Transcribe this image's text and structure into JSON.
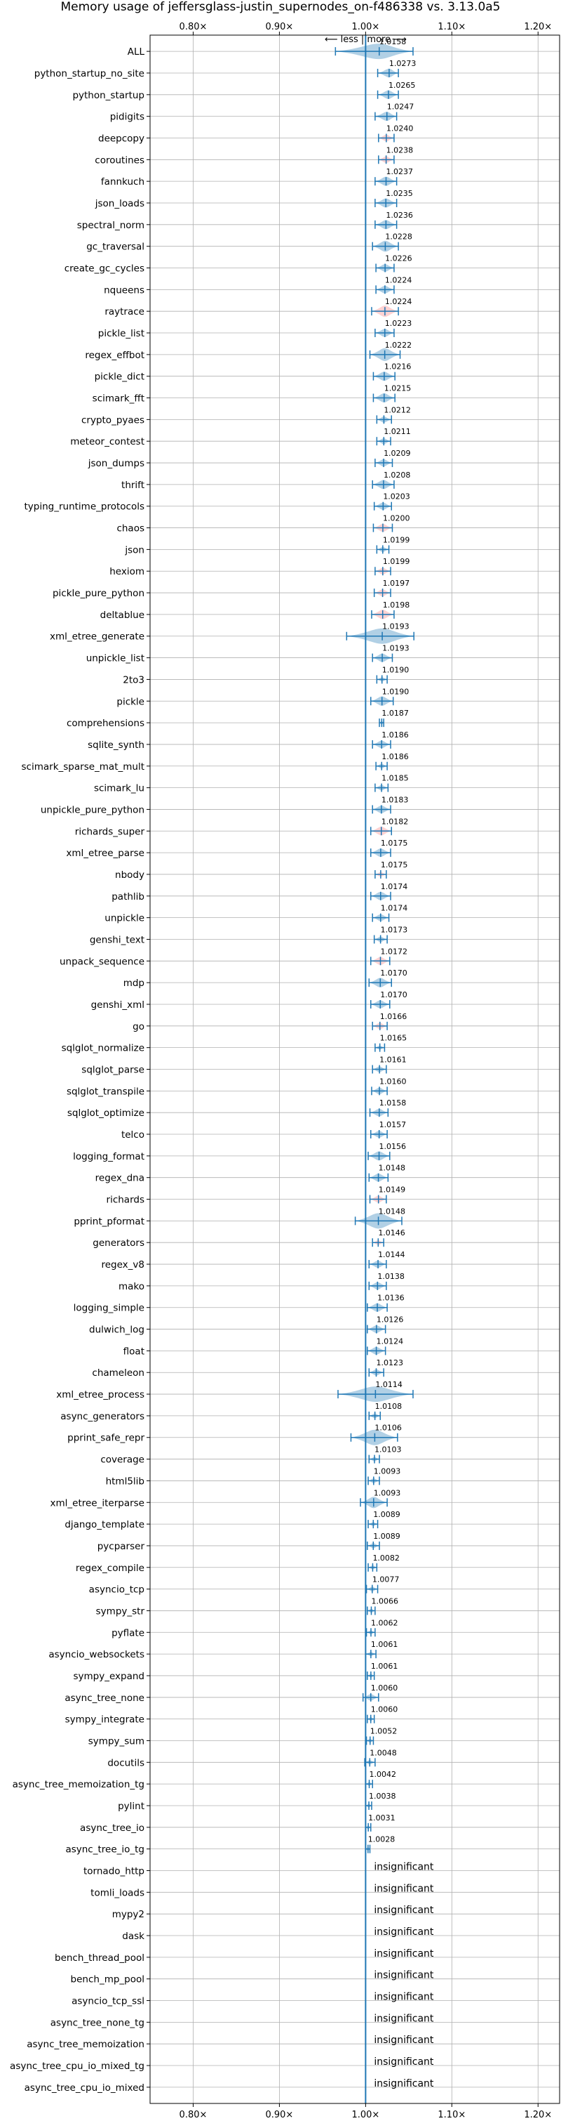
{
  "chart_data": {
    "type": "violin",
    "title": "Memory usage of jeffersglass-justin_supernodes_on-f486338 vs. 3.13.0a5",
    "direction_label": "⟵ less | more ⟶",
    "xlim": [
      0.75,
      1.225
    ],
    "x_ticks": [
      0.8,
      0.9,
      1.0,
      1.1,
      1.2
    ],
    "x_tick_labels": [
      "0.80×",
      "0.90×",
      "1.00×",
      "1.10×",
      "1.20×"
    ],
    "grid": true,
    "reference_line": 1.0,
    "insignificant_text": "insignificant",
    "colors": {
      "normal": "#1f77b4",
      "highlight": "#ff7f7f",
      "grid": "#b0b0b0"
    },
    "benchmarks": [
      {
        "name": "ALL",
        "value": 1.0158,
        "label": "1.0158",
        "lo": 0.965,
        "hi": 1.055,
        "highlight": false
      },
      {
        "name": "python_startup_no_site",
        "value": 1.0273,
        "label": "1.0273",
        "lo": 1.014,
        "hi": 1.038,
        "highlight": false
      },
      {
        "name": "python_startup",
        "value": 1.0265,
        "label": "1.0265",
        "lo": 1.014,
        "hi": 1.038,
        "highlight": false
      },
      {
        "name": "pidigits",
        "value": 1.0247,
        "label": "1.0247",
        "lo": 1.011,
        "hi": 1.036,
        "highlight": false
      },
      {
        "name": "deepcopy",
        "value": 1.024,
        "label": "1.0240",
        "lo": 1.015,
        "hi": 1.033,
        "highlight": true
      },
      {
        "name": "coroutines",
        "value": 1.0238,
        "label": "1.0238",
        "lo": 1.015,
        "hi": 1.033,
        "highlight": true
      },
      {
        "name": "fannkuch",
        "value": 1.0237,
        "label": "1.0237",
        "lo": 1.011,
        "hi": 1.036,
        "highlight": false
      },
      {
        "name": "json_loads",
        "value": 1.0235,
        "label": "1.0235",
        "lo": 1.011,
        "hi": 1.036,
        "highlight": false
      },
      {
        "name": "spectral_norm",
        "value": 1.0236,
        "label": "1.0236",
        "lo": 1.011,
        "hi": 1.036,
        "highlight": false
      },
      {
        "name": "gc_traversal",
        "value": 1.0228,
        "label": "1.0228",
        "lo": 1.008,
        "hi": 1.038,
        "highlight": false
      },
      {
        "name": "create_gc_cycles",
        "value": 1.0226,
        "label": "1.0226",
        "lo": 1.012,
        "hi": 1.033,
        "highlight": false
      },
      {
        "name": "nqueens",
        "value": 1.0224,
        "label": "1.0224",
        "lo": 1.012,
        "hi": 1.033,
        "highlight": false
      },
      {
        "name": "raytrace",
        "value": 1.0224,
        "label": "1.0224",
        "lo": 1.007,
        "hi": 1.038,
        "highlight": true
      },
      {
        "name": "pickle_list",
        "value": 1.0223,
        "label": "1.0223",
        "lo": 1.011,
        "hi": 1.033,
        "highlight": false
      },
      {
        "name": "regex_effbot",
        "value": 1.0222,
        "label": "1.0222",
        "lo": 1.005,
        "hi": 1.04,
        "highlight": false
      },
      {
        "name": "pickle_dict",
        "value": 1.0216,
        "label": "1.0216",
        "lo": 1.009,
        "hi": 1.034,
        "highlight": false
      },
      {
        "name": "scimark_fft",
        "value": 1.0215,
        "label": "1.0215",
        "lo": 1.009,
        "hi": 1.034,
        "highlight": false
      },
      {
        "name": "crypto_pyaes",
        "value": 1.0212,
        "label": "1.0212",
        "lo": 1.013,
        "hi": 1.03,
        "highlight": false
      },
      {
        "name": "meteor_contest",
        "value": 1.0211,
        "label": "1.0211",
        "lo": 1.013,
        "hi": 1.029,
        "highlight": false
      },
      {
        "name": "json_dumps",
        "value": 1.0209,
        "label": "1.0209",
        "lo": 1.011,
        "hi": 1.031,
        "highlight": false
      },
      {
        "name": "thrift",
        "value": 1.0208,
        "label": "1.0208",
        "lo": 1.008,
        "hi": 1.033,
        "highlight": false
      },
      {
        "name": "typing_runtime_protocols",
        "value": 1.0203,
        "label": "1.0203",
        "lo": 1.01,
        "hi": 1.03,
        "highlight": false
      },
      {
        "name": "chaos",
        "value": 1.02,
        "label": "1.0200",
        "lo": 1.009,
        "hi": 1.031,
        "highlight": true
      },
      {
        "name": "json",
        "value": 1.0199,
        "label": "1.0199",
        "lo": 1.013,
        "hi": 1.027,
        "highlight": false
      },
      {
        "name": "hexiom",
        "value": 1.0199,
        "label": "1.0199",
        "lo": 1.011,
        "hi": 1.029,
        "highlight": true
      },
      {
        "name": "pickle_pure_python",
        "value": 1.0197,
        "label": "1.0197",
        "lo": 1.01,
        "hi": 1.029,
        "highlight": true
      },
      {
        "name": "deltablue",
        "value": 1.0198,
        "label": "1.0198",
        "lo": 1.007,
        "hi": 1.033,
        "highlight": true
      },
      {
        "name": "xml_etree_generate",
        "value": 1.0193,
        "label": "1.0193",
        "lo": 0.978,
        "hi": 1.056,
        "highlight": false
      },
      {
        "name": "unpickle_list",
        "value": 1.0193,
        "label": "1.0193",
        "lo": 1.008,
        "hi": 1.031,
        "highlight": false
      },
      {
        "name": "2to3",
        "value": 1.019,
        "label": "1.0190",
        "lo": 1.013,
        "hi": 1.025,
        "highlight": false
      },
      {
        "name": "pickle",
        "value": 1.019,
        "label": "1.0190",
        "lo": 1.006,
        "hi": 1.032,
        "highlight": false
      },
      {
        "name": "comprehensions",
        "value": 1.0187,
        "label": "1.0187",
        "lo": 1.016,
        "hi": 1.021,
        "highlight": false
      },
      {
        "name": "sqlite_synth",
        "value": 1.0186,
        "label": "1.0186",
        "lo": 1.008,
        "hi": 1.029,
        "highlight": false
      },
      {
        "name": "scimark_sparse_mat_mult",
        "value": 1.0186,
        "label": "1.0186",
        "lo": 1.012,
        "hi": 1.025,
        "highlight": false
      },
      {
        "name": "scimark_lu",
        "value": 1.0185,
        "label": "1.0185",
        "lo": 1.011,
        "hi": 1.026,
        "highlight": false
      },
      {
        "name": "unpickle_pure_python",
        "value": 1.0183,
        "label": "1.0183",
        "lo": 1.008,
        "hi": 1.029,
        "highlight": false
      },
      {
        "name": "richards_super",
        "value": 1.0182,
        "label": "1.0182",
        "lo": 1.006,
        "hi": 1.03,
        "highlight": true
      },
      {
        "name": "xml_etree_parse",
        "value": 1.0175,
        "label": "1.0175",
        "lo": 1.006,
        "hi": 1.029,
        "highlight": false
      },
      {
        "name": "nbody",
        "value": 1.0175,
        "label": "1.0175",
        "lo": 1.011,
        "hi": 1.024,
        "highlight": true
      },
      {
        "name": "pathlib",
        "value": 1.0174,
        "label": "1.0174",
        "lo": 1.006,
        "hi": 1.029,
        "highlight": false
      },
      {
        "name": "unpickle",
        "value": 1.0174,
        "label": "1.0174",
        "lo": 1.008,
        "hi": 1.027,
        "highlight": false
      },
      {
        "name": "genshi_text",
        "value": 1.0173,
        "label": "1.0173",
        "lo": 1.01,
        "hi": 1.025,
        "highlight": false
      },
      {
        "name": "unpack_sequence",
        "value": 1.0172,
        "label": "1.0172",
        "lo": 1.006,
        "hi": 1.028,
        "highlight": true
      },
      {
        "name": "mdp",
        "value": 1.017,
        "label": "1.0170",
        "lo": 1.004,
        "hi": 1.03,
        "highlight": false
      },
      {
        "name": "genshi_xml",
        "value": 1.017,
        "label": "1.0170",
        "lo": 1.006,
        "hi": 1.028,
        "highlight": false
      },
      {
        "name": "go",
        "value": 1.0166,
        "label": "1.0166",
        "lo": 1.008,
        "hi": 1.025,
        "highlight": true
      },
      {
        "name": "sqlglot_normalize",
        "value": 1.0165,
        "label": "1.0165",
        "lo": 1.011,
        "hi": 1.022,
        "highlight": false
      },
      {
        "name": "sqlglot_parse",
        "value": 1.0161,
        "label": "1.0161",
        "lo": 1.008,
        "hi": 1.024,
        "highlight": false
      },
      {
        "name": "sqlglot_transpile",
        "value": 1.016,
        "label": "1.0160",
        "lo": 1.007,
        "hi": 1.025,
        "highlight": false
      },
      {
        "name": "sqlglot_optimize",
        "value": 1.0158,
        "label": "1.0158",
        "lo": 1.005,
        "hi": 1.026,
        "highlight": false
      },
      {
        "name": "telco",
        "value": 1.0157,
        "label": "1.0157",
        "lo": 1.006,
        "hi": 1.025,
        "highlight": false
      },
      {
        "name": "logging_format",
        "value": 1.0156,
        "label": "1.0156",
        "lo": 1.003,
        "hi": 1.028,
        "highlight": false
      },
      {
        "name": "regex_dna",
        "value": 1.0148,
        "label": "1.0148",
        "lo": 1.004,
        "hi": 1.026,
        "highlight": false
      },
      {
        "name": "richards",
        "value": 1.0149,
        "label": "1.0149",
        "lo": 1.005,
        "hi": 1.024,
        "highlight": true
      },
      {
        "name": "pprint_pformat",
        "value": 1.0148,
        "label": "1.0148",
        "lo": 0.988,
        "hi": 1.042,
        "highlight": false
      },
      {
        "name": "generators",
        "value": 1.0146,
        "label": "1.0146",
        "lo": 1.008,
        "hi": 1.021,
        "highlight": true
      },
      {
        "name": "regex_v8",
        "value": 1.0144,
        "label": "1.0144",
        "lo": 1.004,
        "hi": 1.024,
        "highlight": false
      },
      {
        "name": "mako",
        "value": 1.0138,
        "label": "1.0138",
        "lo": 1.004,
        "hi": 1.024,
        "highlight": false
      },
      {
        "name": "logging_simple",
        "value": 1.0136,
        "label": "1.0136",
        "lo": 1.002,
        "hi": 1.025,
        "highlight": false
      },
      {
        "name": "dulwich_log",
        "value": 1.0126,
        "label": "1.0126",
        "lo": 1.002,
        "hi": 1.023,
        "highlight": false
      },
      {
        "name": "float",
        "value": 1.0124,
        "label": "1.0124",
        "lo": 1.002,
        "hi": 1.023,
        "highlight": false
      },
      {
        "name": "chameleon",
        "value": 1.0123,
        "label": "1.0123",
        "lo": 1.004,
        "hi": 1.021,
        "highlight": false
      },
      {
        "name": "xml_etree_process",
        "value": 1.0114,
        "label": "1.0114",
        "lo": 0.968,
        "hi": 1.055,
        "highlight": false
      },
      {
        "name": "async_generators",
        "value": 1.0108,
        "label": "1.0108",
        "lo": 1.004,
        "hi": 1.017,
        "highlight": false
      },
      {
        "name": "pprint_safe_repr",
        "value": 1.0106,
        "label": "1.0106",
        "lo": 0.983,
        "hi": 1.037,
        "highlight": false
      },
      {
        "name": "coverage",
        "value": 1.0103,
        "label": "1.0103",
        "lo": 1.004,
        "hi": 1.016,
        "highlight": false
      },
      {
        "name": "html5lib",
        "value": 1.0093,
        "label": "1.0093",
        "lo": 1.003,
        "hi": 1.016,
        "highlight": false
      },
      {
        "name": "xml_etree_iterparse",
        "value": 1.0093,
        "label": "1.0093",
        "lo": 0.994,
        "hi": 1.025,
        "highlight": false
      },
      {
        "name": "django_template",
        "value": 1.0089,
        "label": "1.0089",
        "lo": 1.003,
        "hi": 1.014,
        "highlight": false
      },
      {
        "name": "pycparser",
        "value": 1.0089,
        "label": "1.0089",
        "lo": 1.002,
        "hi": 1.016,
        "highlight": false
      },
      {
        "name": "regex_compile",
        "value": 1.0082,
        "label": "1.0082",
        "lo": 1.003,
        "hi": 1.013,
        "highlight": false
      },
      {
        "name": "asyncio_tcp",
        "value": 1.0077,
        "label": "1.0077",
        "lo": 1.001,
        "hi": 1.014,
        "highlight": false
      },
      {
        "name": "sympy_str",
        "value": 1.0066,
        "label": "1.0066",
        "lo": 1.002,
        "hi": 1.011,
        "highlight": false
      },
      {
        "name": "pyflate",
        "value": 1.0062,
        "label": "1.0062",
        "lo": 1.001,
        "hi": 1.011,
        "highlight": false
      },
      {
        "name": "asyncio_websockets",
        "value": 1.0061,
        "label": "1.0061",
        "lo": 1.0,
        "hi": 1.012,
        "highlight": false
      },
      {
        "name": "sympy_expand",
        "value": 1.0061,
        "label": "1.0061",
        "lo": 1.002,
        "hi": 1.01,
        "highlight": false
      },
      {
        "name": "async_tree_none",
        "value": 1.006,
        "label": "1.0060",
        "lo": 0.997,
        "hi": 1.015,
        "highlight": false
      },
      {
        "name": "sympy_integrate",
        "value": 1.006,
        "label": "1.0060",
        "lo": 1.002,
        "hi": 1.01,
        "highlight": false
      },
      {
        "name": "sympy_sum",
        "value": 1.0052,
        "label": "1.0052",
        "lo": 1.001,
        "hi": 1.009,
        "highlight": false
      },
      {
        "name": "docutils",
        "value": 1.0048,
        "label": "1.0048",
        "lo": 0.999,
        "hi": 1.011,
        "highlight": false
      },
      {
        "name": "async_tree_memoization_tg",
        "value": 1.0042,
        "label": "1.0042",
        "lo": 1.0,
        "hi": 1.008,
        "highlight": false
      },
      {
        "name": "pylint",
        "value": 1.0038,
        "label": "1.0038",
        "lo": 1.0,
        "hi": 1.007,
        "highlight": false
      },
      {
        "name": "async_tree_io",
        "value": 1.0031,
        "label": "1.0031",
        "lo": 1.0,
        "hi": 1.006,
        "highlight": false
      },
      {
        "name": "async_tree_io_tg",
        "value": 1.0028,
        "label": "1.0028",
        "lo": 1.0,
        "hi": 1.005,
        "highlight": false
      },
      {
        "name": "tornado_http",
        "insignificant": true
      },
      {
        "name": "tomli_loads",
        "insignificant": true
      },
      {
        "name": "mypy2",
        "insignificant": true
      },
      {
        "name": "dask",
        "insignificant": true
      },
      {
        "name": "bench_thread_pool",
        "insignificant": true
      },
      {
        "name": "bench_mp_pool",
        "insignificant": true
      },
      {
        "name": "asyncio_tcp_ssl",
        "insignificant": true
      },
      {
        "name": "async_tree_none_tg",
        "insignificant": true
      },
      {
        "name": "async_tree_memoization",
        "insignificant": true
      },
      {
        "name": "async_tree_cpu_io_mixed_tg",
        "insignificant": true
      },
      {
        "name": "async_tree_cpu_io_mixed",
        "insignificant": true
      }
    ]
  }
}
